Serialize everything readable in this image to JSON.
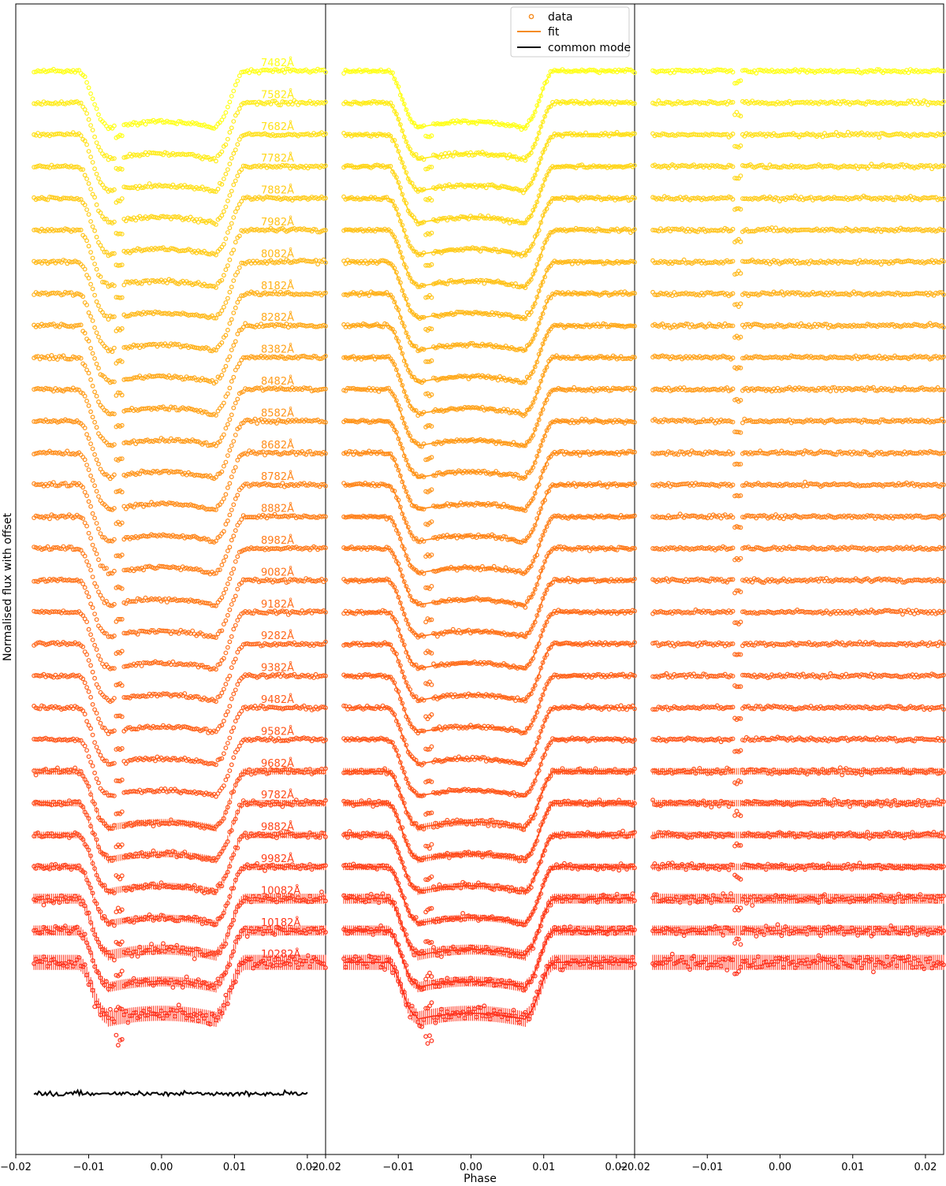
{
  "figure": {
    "xlabel": "Phase",
    "ylabel": "Normalised flux with offset",
    "legend": {
      "position": "top-center of middle panel",
      "entries": [
        {
          "label": "data",
          "marker": "open-circle",
          "color": "#f58b1f"
        },
        {
          "label": "fit",
          "marker": "line",
          "color": "#f58b1f"
        },
        {
          "label": "common mode",
          "marker": "line",
          "color": "#000000"
        }
      ]
    }
  },
  "chart_data": {
    "type": "scatter",
    "description_panels": [
      "data",
      "fit",
      "residuals"
    ],
    "xlim": [
      -0.02,
      0.0225
    ],
    "x_ticks": [
      "−0.02",
      "−0.01",
      "0.00",
      "0.01",
      "0.02"
    ],
    "x_tick_values": [
      -0.02,
      -0.01,
      0.0,
      0.01,
      0.02
    ],
    "grid": false,
    "phase_range": [
      -0.0175,
      0.0225
    ],
    "transit": {
      "ingress_start": -0.0115,
      "ingress_end": -0.0075,
      "egress_start": 0.0075,
      "egress_end": 0.0115,
      "spot_phase": -0.0058
    },
    "wavelengths": [
      "7482Å",
      "7582Å",
      "7682Å",
      "7782Å",
      "7882Å",
      "7982Å",
      "8082Å",
      "8182Å",
      "8282Å",
      "8382Å",
      "8482Å",
      "8582Å",
      "8682Å",
      "8782Å",
      "8882Å",
      "8982Å",
      "9082Å",
      "9182Å",
      "9282Å",
      "9382Å",
      "9482Å",
      "9582Å",
      "9682Å",
      "9782Å",
      "9882Å",
      "9982Å",
      "10082Å",
      "10182Å",
      "10282Å"
    ],
    "colors": [
      "#ffff1a",
      "#ffec1a",
      "#ffe01a",
      "#ffd61a",
      "#ffcb1a",
      "#ffc21a",
      "#ffb91a",
      "#ffb11a",
      "#ffa91a",
      "#ffa21a",
      "#ff9b1a",
      "#ff941a",
      "#ff8d1a",
      "#ff861a",
      "#ff801a",
      "#ff7a1a",
      "#ff731a",
      "#ff6d1a",
      "#ff671a",
      "#ff621a",
      "#ff5c1a",
      "#ff561a",
      "#ff511a",
      "#ff4b1a",
      "#ff461a",
      "#ff401a",
      "#ff3b1a",
      "#ff361a",
      "#ff301a"
    ],
    "series_noise": [
      "low",
      "low",
      "low",
      "low",
      "low",
      "low",
      "low",
      "low",
      "low",
      "low",
      "low",
      "low",
      "low",
      "low",
      "low",
      "low",
      "low",
      "low",
      "low",
      "low",
      "low",
      "low",
      "medium",
      "medium",
      "medium",
      "medium",
      "high",
      "high",
      "very-high"
    ],
    "common_mode": {
      "label": "common mode",
      "color": "#000000"
    }
  }
}
